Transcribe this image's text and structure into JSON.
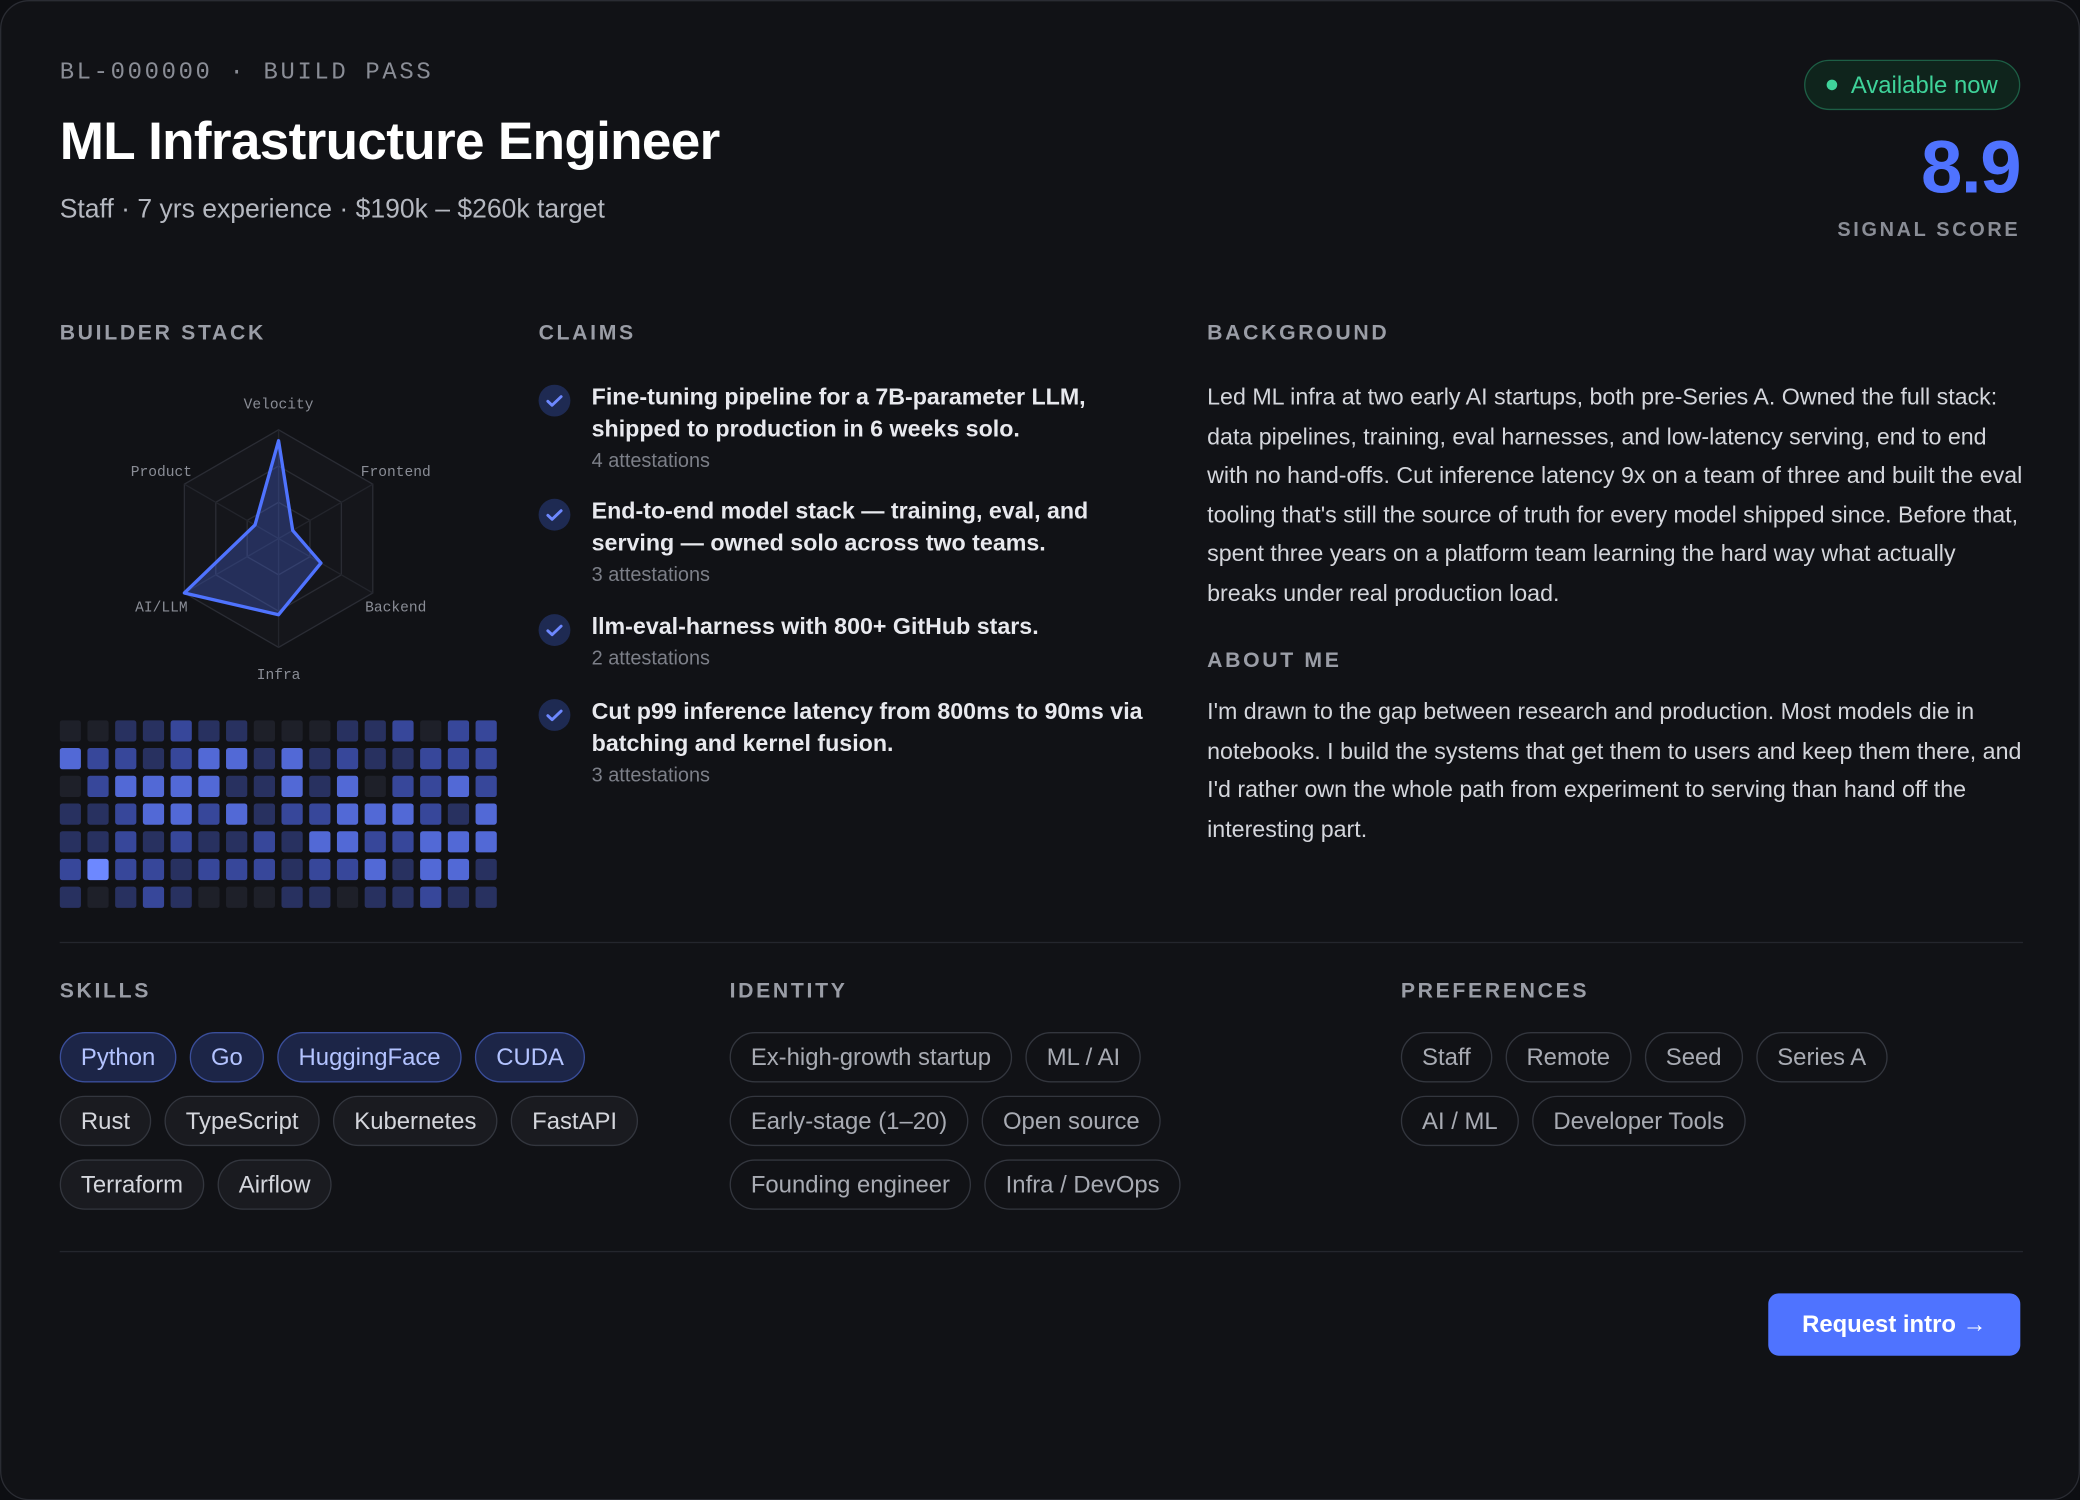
{
  "header": {
    "id_line": "BL-000000 · BUILD PASS",
    "title": "ML Infrastructure Engineer",
    "subtitle": "Staff · 7 yrs experience · $190k – $260k target",
    "status": "Available now",
    "score": 8.9,
    "score_label": "SIGNAL SCORE"
  },
  "builder_stack": {
    "heading": "BUILDER STACK",
    "radar": {
      "axes": [
        "Velocity",
        "Frontend",
        "Backend",
        "Infra",
        "AI/LLM",
        "Product"
      ],
      "values": [
        90,
        15,
        45,
        70,
        100,
        25
      ],
      "max": 100
    },
    "activity": {
      "levels": [
        [
          0,
          0,
          1,
          1,
          2,
          1,
          1,
          0,
          0,
          0,
          1,
          1,
          2,
          0,
          2,
          2
        ],
        [
          3,
          2,
          2,
          1,
          2,
          3,
          3,
          1,
          3,
          1,
          2,
          1,
          1,
          2,
          2,
          2
        ],
        [
          0,
          2,
          3,
          3,
          3,
          3,
          1,
          1,
          3,
          1,
          3,
          0,
          2,
          2,
          3,
          2
        ],
        [
          1,
          1,
          2,
          3,
          3,
          2,
          3,
          1,
          2,
          2,
          3,
          3,
          3,
          2,
          1,
          3
        ],
        [
          1,
          1,
          2,
          1,
          2,
          1,
          1,
          2,
          1,
          3,
          3,
          2,
          2,
          3,
          3,
          3
        ],
        [
          2,
          4,
          2,
          2,
          1,
          2,
          2,
          2,
          1,
          2,
          2,
          3,
          1,
          3,
          3,
          1
        ],
        [
          1,
          0,
          1,
          2,
          1,
          0,
          0,
          0,
          1,
          1,
          0,
          1,
          1,
          2,
          1,
          1
        ]
      ],
      "colors": [
        "#1e2029",
        "#283160",
        "#37479a",
        "#5269d6",
        "#6d88ff"
      ]
    }
  },
  "claims": {
    "heading": "CLAIMS",
    "items": [
      {
        "text": "Fine-tuning pipeline for a 7B-parameter LLM, shipped to production in 6 weeks solo.",
        "attestations": "4 attestations"
      },
      {
        "text": "End-to-end model stack — training, eval, and serving — owned solo across two teams.",
        "attestations": "3 attestations"
      },
      {
        "text": "llm-eval-harness with 800+ GitHub stars.",
        "attestations": "2 attestations"
      },
      {
        "text": "Cut p99 inference latency from 800ms to 90ms via batching and kernel fusion.",
        "attestations": "3 attestations"
      }
    ]
  },
  "background": {
    "heading": "BACKGROUND",
    "text": "Led ML infra at two early AI startups, both pre-Series A. Owned the full stack: data pipelines, training, eval harnesses, and low-latency serving, end to end with no hand-offs. Cut inference latency 9x on a team of three and built the eval tooling that's still the source of truth for every model shipped since. Before that, spent three years on a platform team learning the hard way what actually breaks under real production load."
  },
  "about": {
    "heading": "ABOUT ME",
    "text": "I'm drawn to the gap between research and production. Most models die in notebooks. I build the systems that get them to users and keep them there, and I'd rather own the whole path from experiment to serving than hand off the interesting part."
  },
  "skills": {
    "heading": "SKILLS",
    "tags": [
      "Python",
      "Go",
      "HuggingFace",
      "CUDA",
      "Rust",
      "TypeScript",
      "Kubernetes",
      "FastAPI",
      "Terraform",
      "Airflow"
    ],
    "highlighted": [
      true,
      true,
      true,
      true,
      false,
      false,
      false,
      false,
      false,
      false
    ]
  },
  "identity": {
    "heading": "IDENTITY",
    "tags": [
      "Ex-high-growth startup",
      "ML / AI",
      "Early-stage (1–20)",
      "Open source",
      "Founding engineer",
      "Infra / DevOps"
    ]
  },
  "preferences": {
    "heading": "PREFERENCES",
    "tags": [
      "Staff",
      "Remote",
      "Seed",
      "Series A",
      "AI / ML",
      "Developer Tools"
    ]
  },
  "action": {
    "button": "Request intro →"
  }
}
